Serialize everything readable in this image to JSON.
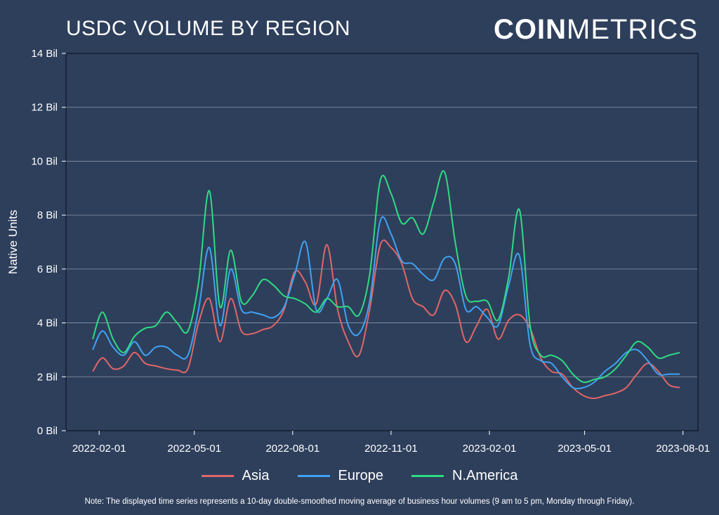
{
  "title": "USDC VOLUME BY REGION",
  "brand": {
    "part1": "COIN",
    "part2": "METRICS"
  },
  "note": "Note: The displayed time series represents a 10-day double-smoothed moving average of business hour volumes (9 am to 5 pm, Monday through Friday).",
  "chart_data": {
    "type": "line",
    "title": "USDC VOLUME BY REGION",
    "xlabel": "",
    "ylabel": "Native Units",
    "ylim": [
      0,
      14
    ],
    "yticks": [
      0,
      2,
      4,
      6,
      8,
      10,
      12,
      14
    ],
    "ytick_labels": [
      "0 Bil",
      "2 Bil",
      "4 Bil",
      "6 Bil",
      "8 Bil",
      "10 Bil",
      "12 Bil",
      "14 Bil"
    ],
    "xlim": [
      "2022-01-01",
      "2023-08-15"
    ],
    "xticks": [
      "2022-02-01",
      "2022-05-01",
      "2022-08-01",
      "2022-11-01",
      "2023-02-01",
      "2023-05-01",
      "2023-08-01"
    ],
    "xtick_labels": [
      "2022-02-01",
      "2022-05-01",
      "2022-08-01",
      "2022-11-01",
      "2023-02-01",
      "2023-05-01",
      "2023-08-01"
    ],
    "grid": "horizontal",
    "legend": "bottom",
    "x": [
      "2022-01-26",
      "2022-02-04",
      "2022-02-14",
      "2022-02-24",
      "2022-03-06",
      "2022-03-16",
      "2022-03-26",
      "2022-04-05",
      "2022-04-15",
      "2022-04-25",
      "2022-05-05",
      "2022-05-15",
      "2022-05-25",
      "2022-06-04",
      "2022-06-14",
      "2022-06-24",
      "2022-07-04",
      "2022-07-14",
      "2022-07-24",
      "2022-08-03",
      "2022-08-13",
      "2022-08-23",
      "2022-09-02",
      "2022-09-12",
      "2022-09-22",
      "2022-10-02",
      "2022-10-12",
      "2022-10-22",
      "2022-11-01",
      "2022-11-11",
      "2022-11-21",
      "2022-12-01",
      "2022-12-11",
      "2022-12-21",
      "2022-12-31",
      "2023-01-10",
      "2023-01-20",
      "2023-01-30",
      "2023-02-09",
      "2023-02-19",
      "2023-03-01",
      "2023-03-11",
      "2023-03-21",
      "2023-03-31",
      "2023-04-10",
      "2023-04-20",
      "2023-04-30",
      "2023-05-10",
      "2023-05-20",
      "2023-05-30",
      "2023-06-09",
      "2023-06-19",
      "2023-06-29",
      "2023-07-09",
      "2023-07-19",
      "2023-07-29"
    ],
    "series": [
      {
        "name": "Asia",
        "color": "#e06666",
        "values": [
          2.2,
          2.7,
          2.3,
          2.4,
          2.9,
          2.5,
          2.4,
          2.3,
          2.25,
          2.3,
          4.0,
          4.9,
          3.3,
          4.9,
          3.7,
          3.6,
          3.75,
          3.9,
          4.5,
          5.9,
          5.5,
          4.7,
          6.9,
          4.5,
          3.3,
          2.8,
          4.5,
          6.9,
          6.8,
          6.2,
          4.9,
          4.6,
          4.3,
          5.2,
          4.7,
          3.3,
          3.9,
          4.5,
          3.4,
          4.1,
          4.3,
          3.8,
          2.7,
          2.2,
          2.1,
          1.6,
          1.3,
          1.2,
          1.3,
          1.4,
          1.6,
          2.1,
          2.5,
          2.2,
          1.7,
          1.6
        ]
      },
      {
        "name": "Europe",
        "color": "#3fa3f2",
        "values": [
          3.0,
          3.7,
          3.1,
          2.8,
          3.3,
          2.8,
          3.1,
          3.1,
          2.8,
          2.8,
          4.5,
          6.8,
          3.9,
          6.0,
          4.5,
          4.4,
          4.3,
          4.2,
          4.6,
          5.8,
          7.0,
          4.5,
          4.9,
          5.6,
          3.9,
          3.6,
          4.8,
          7.8,
          7.3,
          6.3,
          6.2,
          5.8,
          5.6,
          6.4,
          6.2,
          4.5,
          4.6,
          4.2,
          3.9,
          5.4,
          6.5,
          3.2,
          2.6,
          2.5,
          2.0,
          1.6,
          1.6,
          1.8,
          2.2,
          2.5,
          2.9,
          3.0,
          2.6,
          2.1,
          2.1,
          2.1
        ]
      },
      {
        "name": "N.America",
        "color": "#2edc82",
        "values": [
          3.4,
          4.4,
          3.4,
          2.9,
          3.5,
          3.8,
          3.9,
          4.4,
          4.0,
          3.7,
          5.5,
          8.9,
          4.6,
          6.7,
          4.8,
          5.0,
          5.6,
          5.4,
          5.0,
          4.9,
          4.7,
          4.4,
          4.9,
          4.6,
          4.6,
          4.3,
          5.8,
          9.3,
          8.8,
          7.7,
          7.9,
          7.3,
          8.5,
          9.6,
          7.0,
          5.0,
          4.8,
          4.8,
          4.1,
          5.7,
          8.2,
          3.9,
          2.8,
          2.8,
          2.6,
          2.1,
          1.8,
          1.9,
          2.0,
          2.3,
          2.8,
          3.3,
          3.1,
          2.7,
          2.8,
          2.9
        ]
      }
    ]
  }
}
